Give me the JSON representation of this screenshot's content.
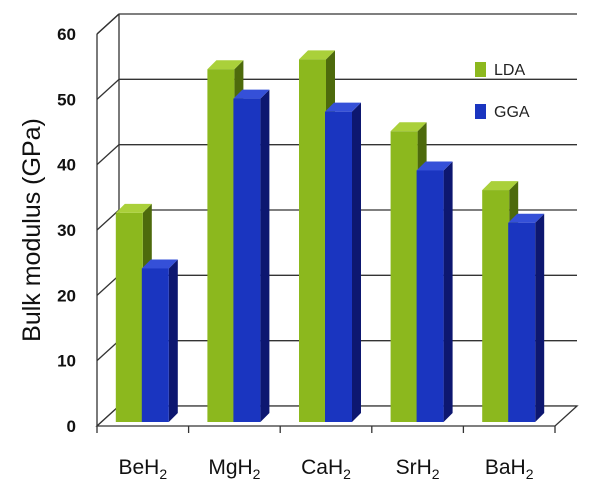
{
  "chart_data": {
    "type": "bar",
    "title": "",
    "xlabel": "",
    "ylabel": "Bulk modulus (GPa)",
    "ylim": [
      0,
      60
    ],
    "yticks": [
      0,
      10,
      20,
      30,
      40,
      50,
      60
    ],
    "categories": [
      {
        "base": "BeH",
        "sub": "2"
      },
      {
        "base": "MgH",
        "sub": "2"
      },
      {
        "base": "CaH",
        "sub": "2"
      },
      {
        "base": "SrH",
        "sub": "2"
      },
      {
        "base": "BaH",
        "sub": "2"
      }
    ],
    "series": [
      {
        "name": "LDA",
        "values": [
          32,
          54,
          55.5,
          44.5,
          35.5
        ]
      },
      {
        "name": "GGA",
        "values": [
          23.5,
          49.5,
          47.5,
          38.5,
          30.5
        ]
      }
    ],
    "grid": true,
    "legend_position": "top-right"
  },
  "colors": {
    "LDA": {
      "front": "#8cb81e",
      "side": "#4d6a0c",
      "top": "#aad03a"
    },
    "GGA": {
      "front": "#1a35c0",
      "side": "#0d1770",
      "top": "#3550d8"
    }
  }
}
